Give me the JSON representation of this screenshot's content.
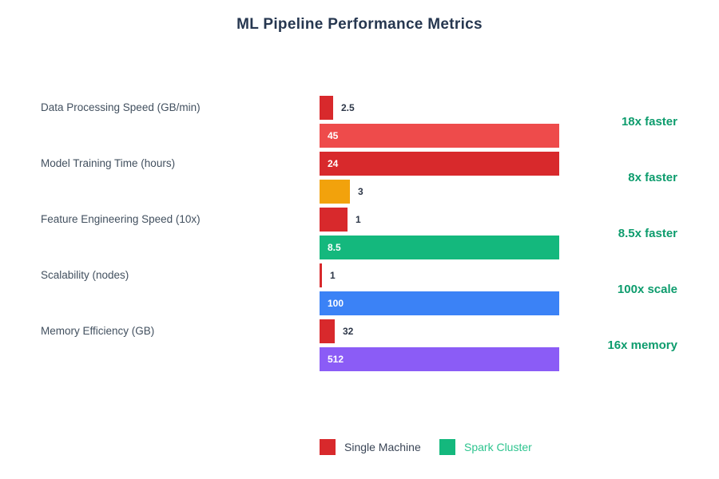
{
  "title": "ML Pipeline Performance Metrics",
  "chart_data": {
    "type": "bar",
    "orientation": "horizontal",
    "title": "ML Pipeline Performance Metrics",
    "categories": [
      "Data Processing Speed (GB/min)",
      "Model Training Time (hours)",
      "Feature Engineering Speed (10x)",
      "Scalability (nodes)",
      "Memory Efficiency (GB)"
    ],
    "series": [
      {
        "name": "Single Machine",
        "values": [
          2.5,
          24,
          1,
          1,
          32
        ],
        "color": "#d8292c"
      },
      {
        "name": "Spark Cluster",
        "values": [
          45,
          3,
          8.5,
          100,
          512
        ],
        "colors": [
          "#ee4b4b",
          "#f2a20c",
          "#14b87d",
          "#3b82f6",
          "#8b5cf6"
        ]
      }
    ],
    "value_labels_first": [
      "2.5",
      "24",
      "1",
      "1",
      "32"
    ],
    "value_labels_second": [
      "45",
      "3",
      "8.5",
      "100",
      "512"
    ],
    "annotations": [
      "18x faster",
      "8x faster",
      "8.5x faster",
      "100x scale",
      "16x memory"
    ],
    "annotation_color": "#0d9c6d",
    "scaling": "each pair scaled to max of pair",
    "grid": false,
    "legend_position": "bottom"
  },
  "legend": {
    "items": [
      {
        "label": "Single Machine",
        "swatch_color": "#d8292c",
        "text_color": "#3a4556"
      },
      {
        "label": "Spark Cluster",
        "swatch_color": "#14b87d",
        "text_color": "#2ec48f"
      }
    ]
  }
}
